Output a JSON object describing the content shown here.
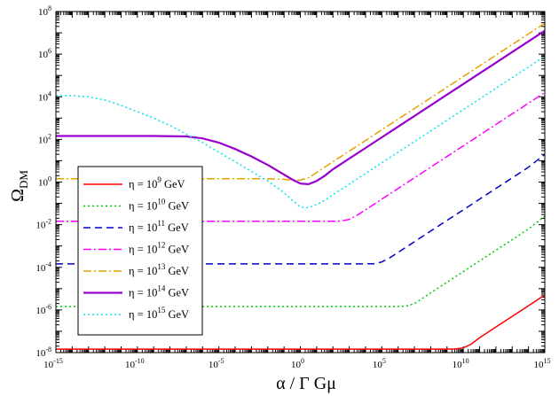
{
  "chart_data": {
    "type": "line",
    "title": "",
    "xlabel": "α / Γ Gμ",
    "ylabel": "Ω",
    "ylabel_sub": "DM",
    "xscale": "log",
    "yscale": "log",
    "xlim_exp": [
      -15,
      15
    ],
    "ylim_exp": [
      -8,
      8
    ],
    "x_ticks": [
      {
        "base": "10",
        "exp": "-15",
        "value_exp": -15
      },
      {
        "base": "10",
        "exp": "-10",
        "value_exp": -10
      },
      {
        "base": "10",
        "exp": "-5",
        "value_exp": -5
      },
      {
        "base": "10",
        "exp": "0",
        "value_exp": 0
      },
      {
        "base": "10",
        "exp": "5",
        "value_exp": 5
      },
      {
        "base": "10",
        "exp": "10",
        "value_exp": 10
      },
      {
        "base": "10",
        "exp": "15",
        "value_exp": 15
      }
    ],
    "y_ticks": [
      {
        "base": "10",
        "exp": "-8",
        "value_exp": -8
      },
      {
        "base": "10",
        "exp": "-6",
        "value_exp": -6
      },
      {
        "base": "10",
        "exp": "-4",
        "value_exp": -4
      },
      {
        "base": "10",
        "exp": "-2",
        "value_exp": -2
      },
      {
        "base": "10",
        "exp": "0",
        "value_exp": 0
      },
      {
        "base": "10",
        "exp": "2",
        "value_exp": 2
      },
      {
        "base": "10",
        "exp": "4",
        "value_exp": 4
      },
      {
        "base": "10",
        "exp": "6",
        "value_exp": 6
      },
      {
        "base": "10",
        "exp": "8",
        "value_exp": 8
      }
    ],
    "legend_position": "bottom-left",
    "series": [
      {
        "name": "eta-1e9",
        "label_pre": "η = 10",
        "label_exp": "9",
        "label_post": " GeV",
        "color": "#ff0000",
        "dash": "solid",
        "points": [
          [
            -15,
            -7.84
          ],
          [
            9,
            -7.84
          ],
          [
            9.5,
            -7.83
          ],
          [
            10,
            -7.78
          ],
          [
            10.5,
            -7.6
          ],
          [
            11,
            -7.3
          ],
          [
            12,
            -6.8
          ],
          [
            13,
            -6.3
          ],
          [
            14,
            -5.8
          ],
          [
            15,
            -5.3
          ]
        ]
      },
      {
        "name": "eta-1e10",
        "label_pre": "η = 10",
        "label_exp": "10",
        "label_post": " GeV",
        "color": "#00cc00",
        "dash": "dot",
        "points": [
          [
            -15,
            -5.84
          ],
          [
            5,
            -5.84
          ],
          [
            6,
            -5.84
          ],
          [
            6.5,
            -5.82
          ],
          [
            7,
            -5.7
          ],
          [
            7.5,
            -5.45
          ],
          [
            8,
            -5.2
          ],
          [
            9,
            -4.7
          ],
          [
            10,
            -4.2
          ],
          [
            11,
            -3.7
          ],
          [
            12,
            -3.2
          ],
          [
            13,
            -2.7
          ],
          [
            14,
            -2.2
          ],
          [
            15,
            -1.6
          ]
        ]
      },
      {
        "name": "eta-1e11",
        "label_pre": "η = 10",
        "label_exp": "11",
        "label_post": " GeV",
        "color": "#0000cc",
        "dash": "dash",
        "points": [
          [
            -15,
            -3.84
          ],
          [
            3.5,
            -3.84
          ],
          [
            4.5,
            -3.83
          ],
          [
            5,
            -3.75
          ],
          [
            5.5,
            -3.55
          ],
          [
            6,
            -3.3
          ],
          [
            7,
            -2.8
          ],
          [
            8,
            -2.3
          ],
          [
            9,
            -1.8
          ],
          [
            10,
            -1.3
          ],
          [
            11,
            -0.8
          ],
          [
            12,
            -0.3
          ],
          [
            13,
            0.2
          ],
          [
            14,
            0.7
          ],
          [
            15,
            1.3
          ]
        ]
      },
      {
        "name": "eta-1e12",
        "label_pre": "η = 10",
        "label_exp": "12",
        "label_post": " GeV",
        "color": "#ff00ff",
        "dash": "dashdot",
        "points": [
          [
            -15,
            -1.84
          ],
          [
            2,
            -1.84
          ],
          [
            2.5,
            -1.83
          ],
          [
            3,
            -1.75
          ],
          [
            3.5,
            -1.55
          ],
          [
            4,
            -1.3
          ],
          [
            5,
            -0.8
          ],
          [
            6,
            -0.3
          ],
          [
            7,
            0.2
          ],
          [
            8,
            0.7
          ],
          [
            9,
            1.2
          ],
          [
            10,
            1.7
          ],
          [
            11,
            2.2
          ],
          [
            12,
            2.7
          ],
          [
            13,
            3.2
          ],
          [
            14,
            3.7
          ],
          [
            15,
            4.2
          ]
        ]
      },
      {
        "name": "eta-1e13",
        "label_pre": "η = 10",
        "label_exp": "13",
        "label_post": " GeV",
        "color": "#e8a000",
        "dash": "dashdot",
        "points": [
          [
            -15,
            0.16
          ],
          [
            -2,
            0.16
          ],
          [
            -1,
            0.13
          ],
          [
            -0.5,
            0.08
          ],
          [
            0,
            0.1
          ],
          [
            0.5,
            0.2
          ],
          [
            1,
            0.45
          ],
          [
            2,
            0.95
          ],
          [
            3,
            1.45
          ],
          [
            4,
            1.95
          ],
          [
            5,
            2.45
          ],
          [
            6,
            2.95
          ],
          [
            7,
            3.45
          ],
          [
            8,
            3.95
          ],
          [
            9,
            4.45
          ],
          [
            10,
            4.95
          ],
          [
            11,
            5.45
          ],
          [
            12,
            5.95
          ],
          [
            13,
            6.45
          ],
          [
            14,
            6.95
          ],
          [
            15,
            7.45
          ]
        ]
      },
      {
        "name": "eta-1e14",
        "label_pre": "η = 10",
        "label_exp": "14",
        "label_post": " GeV",
        "color": "#9900cc",
        "dash": "solid",
        "points": [
          [
            -15,
            2.16
          ],
          [
            -9,
            2.16
          ],
          [
            -7,
            2.14
          ],
          [
            -6,
            2.05
          ],
          [
            -5,
            1.85
          ],
          [
            -4,
            1.55
          ],
          [
            -3,
            1.2
          ],
          [
            -2,
            0.8
          ],
          [
            -1,
            0.35
          ],
          [
            -0.5,
            0.12
          ],
          [
            0,
            -0.07
          ],
          [
            0.5,
            -0.1
          ],
          [
            1,
            0.05
          ],
          [
            1.5,
            0.3
          ],
          [
            2,
            0.6
          ],
          [
            3,
            1.1
          ],
          [
            4,
            1.6
          ],
          [
            5,
            2.1
          ],
          [
            6,
            2.6
          ],
          [
            7,
            3.1
          ],
          [
            8,
            3.6
          ],
          [
            9,
            4.1
          ],
          [
            10,
            4.6
          ],
          [
            11,
            5.1
          ],
          [
            12,
            5.6
          ],
          [
            13,
            6.1
          ],
          [
            14,
            6.6
          ],
          [
            15,
            7.1
          ]
        ]
      },
      {
        "name": "eta-1e15",
        "label_pre": "η = 10",
        "label_exp": "15",
        "label_post": " GeV",
        "color": "#00e5ee",
        "dash": "dot",
        "points": [
          [
            -15,
            4.05
          ],
          [
            -14,
            4.05
          ],
          [
            -13,
            4.0
          ],
          [
            -12,
            3.85
          ],
          [
            -11,
            3.6
          ],
          [
            -10,
            3.3
          ],
          [
            -9,
            3.0
          ],
          [
            -8,
            2.65
          ],
          [
            -7,
            2.25
          ],
          [
            -6,
            1.85
          ],
          [
            -5,
            1.4
          ],
          [
            -4,
            0.95
          ],
          [
            -3,
            0.5
          ],
          [
            -2,
            0.05
          ],
          [
            -1,
            -0.5
          ],
          [
            -0.5,
            -0.85
          ],
          [
            0,
            -1.17
          ],
          [
            0.5,
            -1.2
          ],
          [
            1,
            -1.05
          ],
          [
            1.5,
            -0.85
          ],
          [
            2,
            -0.6
          ],
          [
            3,
            -0.1
          ],
          [
            4,
            0.4
          ],
          [
            5,
            0.9
          ],
          [
            6,
            1.4
          ],
          [
            7,
            1.9
          ],
          [
            8,
            2.4
          ],
          [
            9,
            2.9
          ],
          [
            10,
            3.4
          ],
          [
            11,
            3.9
          ],
          [
            12,
            4.4
          ],
          [
            13,
            4.9
          ],
          [
            14,
            5.4
          ],
          [
            15,
            5.9
          ]
        ]
      }
    ]
  }
}
